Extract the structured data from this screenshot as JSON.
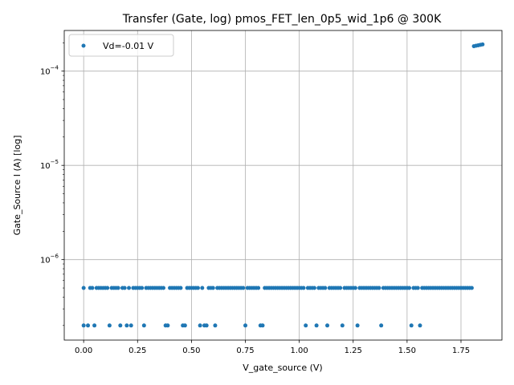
{
  "chart_data": {
    "type": "scatter",
    "title": "Transfer (Gate, log) pmos_FET_len_0p5_wid_1p6 @ 300K",
    "xlabel": "V_gate_source (V)",
    "ylabel": "Gate_Source I (A) [log]",
    "xlim": [
      -0.09,
      1.94
    ],
    "ylim": [
      1.4e-07,
      0.00027
    ],
    "yscale": "log",
    "grid": true,
    "legend_position": "top-left",
    "x_ticks": [
      {
        "value": 0.0,
        "label": "0.00"
      },
      {
        "value": 0.25,
        "label": "0.25"
      },
      {
        "value": 0.5,
        "label": "0.50"
      },
      {
        "value": 0.75,
        "label": "0.75"
      },
      {
        "value": 1.0,
        "label": "1.00"
      },
      {
        "value": 1.25,
        "label": "1.25"
      },
      {
        "value": 1.5,
        "label": "1.50"
      },
      {
        "value": 1.75,
        "label": "1.75"
      }
    ],
    "y_ticks": [
      {
        "value": 1e-06,
        "base": "10",
        "exp": "−6"
      },
      {
        "value": 1e-05,
        "base": "10",
        "exp": "−5"
      },
      {
        "value": 0.0001,
        "base": "10",
        "exp": "−4"
      }
    ],
    "series": [
      {
        "name": "Vd=-0.01 V",
        "color": "#1f77b4",
        "points": [
          [
            0.0,
            5e-07
          ],
          [
            0.0,
            2e-07
          ],
          [
            0.02,
            2e-07
          ],
          [
            0.03,
            5e-07
          ],
          [
            0.04,
            5e-07
          ],
          [
            0.05,
            2e-07
          ],
          [
            0.06,
            5e-07
          ],
          [
            0.07,
            5e-07
          ],
          [
            0.08,
            5e-07
          ],
          [
            0.09,
            5e-07
          ],
          [
            0.1,
            5e-07
          ],
          [
            0.11,
            5e-07
          ],
          [
            0.12,
            2e-07
          ],
          [
            0.13,
            5e-07
          ],
          [
            0.14,
            5e-07
          ],
          [
            0.15,
            5e-07
          ],
          [
            0.16,
            5e-07
          ],
          [
            0.17,
            2e-07
          ],
          [
            0.18,
            5e-07
          ],
          [
            0.19,
            5e-07
          ],
          [
            0.2,
            2e-07
          ],
          [
            0.21,
            5e-07
          ],
          [
            0.22,
            2e-07
          ],
          [
            0.23,
            5e-07
          ],
          [
            0.24,
            5e-07
          ],
          [
            0.25,
            5e-07
          ],
          [
            0.26,
            5e-07
          ],
          [
            0.27,
            5e-07
          ],
          [
            0.28,
            2e-07
          ],
          [
            0.29,
            5e-07
          ],
          [
            0.3,
            5e-07
          ],
          [
            0.31,
            5e-07
          ],
          [
            0.32,
            5e-07
          ],
          [
            0.33,
            5e-07
          ],
          [
            0.34,
            5e-07
          ],
          [
            0.35,
            5e-07
          ],
          [
            0.36,
            5e-07
          ],
          [
            0.37,
            5e-07
          ],
          [
            0.38,
            2e-07
          ],
          [
            0.39,
            2e-07
          ],
          [
            0.4,
            5e-07
          ],
          [
            0.41,
            5e-07
          ],
          [
            0.42,
            5e-07
          ],
          [
            0.43,
            5e-07
          ],
          [
            0.44,
            5e-07
          ],
          [
            0.45,
            5e-07
          ],
          [
            0.46,
            2e-07
          ],
          [
            0.47,
            2e-07
          ],
          [
            0.48,
            5e-07
          ],
          [
            0.49,
            5e-07
          ],
          [
            0.5,
            5e-07
          ],
          [
            0.51,
            5e-07
          ],
          [
            0.52,
            5e-07
          ],
          [
            0.53,
            5e-07
          ],
          [
            0.54,
            2e-07
          ],
          [
            0.55,
            5e-07
          ],
          [
            0.56,
            2e-07
          ],
          [
            0.57,
            2e-07
          ],
          [
            0.58,
            5e-07
          ],
          [
            0.59,
            5e-07
          ],
          [
            0.6,
            5e-07
          ],
          [
            0.61,
            2e-07
          ],
          [
            0.62,
            5e-07
          ],
          [
            0.63,
            5e-07
          ],
          [
            0.64,
            5e-07
          ],
          [
            0.65,
            5e-07
          ],
          [
            0.66,
            5e-07
          ],
          [
            0.67,
            5e-07
          ],
          [
            0.68,
            5e-07
          ],
          [
            0.69,
            5e-07
          ],
          [
            0.7,
            5e-07
          ],
          [
            0.71,
            5e-07
          ],
          [
            0.72,
            5e-07
          ],
          [
            0.73,
            5e-07
          ],
          [
            0.74,
            5e-07
          ],
          [
            0.75,
            2e-07
          ],
          [
            0.76,
            5e-07
          ],
          [
            0.77,
            5e-07
          ],
          [
            0.78,
            5e-07
          ],
          [
            0.79,
            5e-07
          ],
          [
            0.8,
            5e-07
          ],
          [
            0.81,
            5e-07
          ],
          [
            0.82,
            2e-07
          ],
          [
            0.83,
            2e-07
          ],
          [
            0.84,
            5e-07
          ],
          [
            0.85,
            5e-07
          ],
          [
            0.86,
            5e-07
          ],
          [
            0.87,
            5e-07
          ],
          [
            0.88,
            5e-07
          ],
          [
            0.89,
            5e-07
          ],
          [
            0.9,
            5e-07
          ],
          [
            0.91,
            5e-07
          ],
          [
            0.92,
            5e-07
          ],
          [
            0.93,
            5e-07
          ],
          [
            0.94,
            5e-07
          ],
          [
            0.95,
            5e-07
          ],
          [
            0.96,
            5e-07
          ],
          [
            0.97,
            5e-07
          ],
          [
            0.98,
            5e-07
          ],
          [
            0.99,
            5e-07
          ],
          [
            1.0,
            5e-07
          ],
          [
            1.01,
            5e-07
          ],
          [
            1.02,
            5e-07
          ],
          [
            1.03,
            2e-07
          ],
          [
            1.04,
            5e-07
          ],
          [
            1.05,
            5e-07
          ],
          [
            1.06,
            5e-07
          ],
          [
            1.07,
            5e-07
          ],
          [
            1.08,
            2e-07
          ],
          [
            1.09,
            5e-07
          ],
          [
            1.1,
            5e-07
          ],
          [
            1.11,
            5e-07
          ],
          [
            1.12,
            5e-07
          ],
          [
            1.13,
            2e-07
          ],
          [
            1.14,
            5e-07
          ],
          [
            1.15,
            5e-07
          ],
          [
            1.16,
            5e-07
          ],
          [
            1.17,
            5e-07
          ],
          [
            1.18,
            5e-07
          ],
          [
            1.19,
            5e-07
          ],
          [
            1.2,
            2e-07
          ],
          [
            1.21,
            5e-07
          ],
          [
            1.22,
            5e-07
          ],
          [
            1.23,
            5e-07
          ],
          [
            1.24,
            5e-07
          ],
          [
            1.25,
            5e-07
          ],
          [
            1.26,
            5e-07
          ],
          [
            1.27,
            2e-07
          ],
          [
            1.28,
            5e-07
          ],
          [
            1.29,
            5e-07
          ],
          [
            1.3,
            5e-07
          ],
          [
            1.31,
            5e-07
          ],
          [
            1.32,
            5e-07
          ],
          [
            1.33,
            5e-07
          ],
          [
            1.34,
            5e-07
          ],
          [
            1.35,
            5e-07
          ],
          [
            1.36,
            5e-07
          ],
          [
            1.37,
            5e-07
          ],
          [
            1.38,
            2e-07
          ],
          [
            1.39,
            5e-07
          ],
          [
            1.4,
            5e-07
          ],
          [
            1.41,
            5e-07
          ],
          [
            1.42,
            5e-07
          ],
          [
            1.43,
            5e-07
          ],
          [
            1.44,
            5e-07
          ],
          [
            1.45,
            5e-07
          ],
          [
            1.46,
            5e-07
          ],
          [
            1.47,
            5e-07
          ],
          [
            1.48,
            5e-07
          ],
          [
            1.49,
            5e-07
          ],
          [
            1.5,
            5e-07
          ],
          [
            1.51,
            5e-07
          ],
          [
            1.52,
            2e-07
          ],
          [
            1.53,
            5e-07
          ],
          [
            1.54,
            5e-07
          ],
          [
            1.55,
            5e-07
          ],
          [
            1.56,
            2e-07
          ],
          [
            1.57,
            5e-07
          ],
          [
            1.58,
            5e-07
          ],
          [
            1.59,
            5e-07
          ],
          [
            1.6,
            5e-07
          ],
          [
            1.61,
            5e-07
          ],
          [
            1.62,
            5e-07
          ],
          [
            1.63,
            5e-07
          ],
          [
            1.64,
            5e-07
          ],
          [
            1.65,
            5e-07
          ],
          [
            1.66,
            5e-07
          ],
          [
            1.67,
            5e-07
          ],
          [
            1.68,
            5e-07
          ],
          [
            1.69,
            5e-07
          ],
          [
            1.7,
            5e-07
          ],
          [
            1.71,
            5e-07
          ],
          [
            1.72,
            5e-07
          ],
          [
            1.73,
            5e-07
          ],
          [
            1.74,
            5e-07
          ],
          [
            1.75,
            5e-07
          ],
          [
            1.76,
            5e-07
          ],
          [
            1.77,
            5e-07
          ],
          [
            1.78,
            5e-07
          ],
          [
            1.79,
            5e-07
          ],
          [
            1.8,
            5e-07
          ],
          [
            1.81,
            0.000184
          ],
          [
            1.82,
            0.000186
          ],
          [
            1.83,
            0.000188
          ],
          [
            1.84,
            0.00019
          ],
          [
            1.85,
            0.000192
          ]
        ]
      }
    ]
  }
}
